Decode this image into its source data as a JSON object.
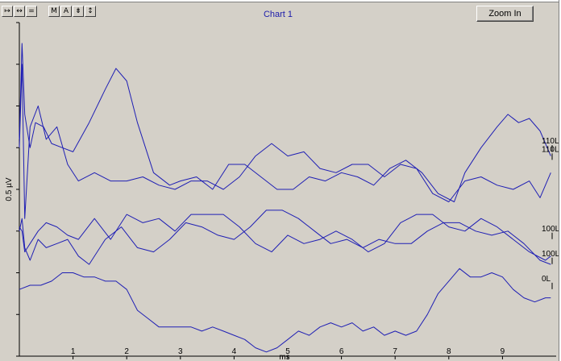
{
  "toolbar": {
    "group1": [
      {
        "label": "↦",
        "name": "fit-width-button"
      },
      {
        "label": "↔",
        "name": "expand-horizontal-button"
      },
      {
        "label": "=",
        "name": "reset-button"
      }
    ],
    "group2": [
      {
        "label": "M",
        "name": "marker-button"
      },
      {
        "label": "A",
        "name": "auto-scale-button"
      },
      {
        "label": "⇟",
        "name": "compress-vertical-button"
      },
      {
        "label": "↕",
        "name": "expand-vertical-button"
      }
    ]
  },
  "chart_title": "Chart 1",
  "zoom_label": "Zoom In",
  "colors": {
    "trace": "#1f1fb4",
    "background": "#d4d0c8"
  },
  "chart_data": {
    "type": "line",
    "xlabel": "ms",
    "ylabel": "0.5 µV",
    "xlim": [
      0,
      10
    ],
    "ylim": [
      -4,
      4
    ],
    "x_ticks": [
      1,
      2,
      3,
      4,
      5,
      6,
      7,
      8,
      9
    ],
    "series": [
      {
        "name": "110L",
        "x": [
          0,
          0.05,
          0.1,
          0.2,
          0.3,
          0.45,
          0.6,
          0.8,
          1.0,
          1.3,
          1.6,
          1.8,
          2.0,
          2.2,
          2.5,
          2.8,
          3.0,
          3.3,
          3.6,
          3.9,
          4.2,
          4.5,
          4.8,
          5.1,
          5.4,
          5.7,
          6.0,
          6.3,
          6.6,
          6.9,
          7.2,
          7.5,
          7.8,
          8.1,
          8.3,
          8.6,
          8.9,
          9.1,
          9.3,
          9.5,
          9.7,
          9.9
        ],
        "y": [
          1.2,
          3.5,
          1.8,
          1.0,
          1.6,
          1.5,
          1.1,
          1.0,
          0.9,
          1.6,
          2.4,
          2.9,
          2.6,
          1.6,
          0.4,
          0.1,
          0.2,
          0.3,
          0.0,
          0.6,
          0.6,
          0.3,
          0.0,
          0.0,
          0.3,
          0.2,
          0.4,
          0.3,
          0.1,
          0.5,
          0.7,
          0.4,
          -0.1,
          -0.3,
          0.4,
          1.0,
          1.5,
          1.8,
          1.6,
          1.7,
          1.4,
          0.8
        ]
      },
      {
        "name": "110L",
        "x": [
          0,
          0.05,
          0.1,
          0.2,
          0.35,
          0.5,
          0.7,
          0.9,
          1.1,
          1.4,
          1.7,
          2.0,
          2.3,
          2.6,
          2.9,
          3.2,
          3.5,
          3.8,
          4.1,
          4.4,
          4.7,
          5.0,
          5.3,
          5.6,
          5.9,
          6.2,
          6.5,
          6.8,
          7.1,
          7.4,
          7.7,
          8.0,
          8.3,
          8.6,
          8.9,
          9.2,
          9.5,
          9.7,
          9.9
        ],
        "y": [
          1.0,
          3.0,
          -0.7,
          1.5,
          2.0,
          1.2,
          1.5,
          0.6,
          0.2,
          0.4,
          0.2,
          0.2,
          0.3,
          0.1,
          0.0,
          0.2,
          0.2,
          0.0,
          0.3,
          0.8,
          1.1,
          0.8,
          0.9,
          0.5,
          0.4,
          0.6,
          0.6,
          0.3,
          0.6,
          0.5,
          -0.1,
          -0.3,
          0.2,
          0.3,
          0.1,
          0.0,
          0.2,
          -0.2,
          0.4
        ]
      },
      {
        "name": "100L",
        "x": [
          0,
          0.05,
          0.1,
          0.2,
          0.35,
          0.5,
          0.7,
          0.9,
          1.1,
          1.3,
          1.6,
          1.9,
          2.2,
          2.5,
          2.8,
          3.1,
          3.4,
          3.7,
          4.0,
          4.3,
          4.6,
          4.9,
          5.2,
          5.5,
          5.8,
          6.1,
          6.4,
          6.7,
          7.0,
          7.3,
          7.6,
          7.9,
          8.2,
          8.5,
          8.8,
          9.1,
          9.4,
          9.7,
          9.9
        ],
        "y": [
          -1.0,
          -0.7,
          -1.4,
          -1.7,
          -1.2,
          -1.4,
          -1.3,
          -1.2,
          -1.6,
          -1.8,
          -1.2,
          -0.9,
          -1.4,
          -1.5,
          -1.2,
          -0.8,
          -0.9,
          -1.1,
          -1.2,
          -0.9,
          -0.5,
          -0.5,
          -0.7,
          -1.0,
          -1.3,
          -1.2,
          -1.4,
          -1.2,
          -1.3,
          -1.3,
          -1.0,
          -0.8,
          -0.8,
          -1.0,
          -1.1,
          -1.0,
          -1.3,
          -1.7,
          -1.8
        ]
      },
      {
        "name": "100L",
        "x": [
          0,
          0.05,
          0.1,
          0.2,
          0.35,
          0.5,
          0.7,
          0.9,
          1.1,
          1.4,
          1.7,
          2.0,
          2.3,
          2.6,
          2.9,
          3.2,
          3.5,
          3.8,
          4.1,
          4.4,
          4.7,
          5.0,
          5.3,
          5.6,
          5.9,
          6.2,
          6.5,
          6.8,
          7.1,
          7.4,
          7.7,
          8.0,
          8.3,
          8.6,
          8.9,
          9.2,
          9.5,
          9.8,
          9.9
        ],
        "y": [
          -0.9,
          -1.0,
          -1.5,
          -1.3,
          -1.0,
          -0.8,
          -0.9,
          -1.1,
          -1.2,
          -0.7,
          -1.2,
          -0.6,
          -0.8,
          -0.7,
          -1.0,
          -0.6,
          -0.6,
          -0.6,
          -0.9,
          -1.3,
          -1.5,
          -1.1,
          -1.3,
          -1.2,
          -1.0,
          -1.2,
          -1.5,
          -1.3,
          -0.8,
          -0.6,
          -0.6,
          -0.9,
          -1.0,
          -0.7,
          -0.9,
          -1.2,
          -1.5,
          -1.7,
          -1.6
        ]
      },
      {
        "name": "0L",
        "x": [
          0,
          0.2,
          0.4,
          0.6,
          0.8,
          1.0,
          1.2,
          1.4,
          1.6,
          1.8,
          2.0,
          2.2,
          2.4,
          2.6,
          2.8,
          3.0,
          3.2,
          3.4,
          3.6,
          3.8,
          4.0,
          4.2,
          4.4,
          4.6,
          4.8,
          5.0,
          5.2,
          5.4,
          5.6,
          5.8,
          6.0,
          6.2,
          6.4,
          6.6,
          6.8,
          7.0,
          7.2,
          7.4,
          7.6,
          7.8,
          8.0,
          8.2,
          8.4,
          8.6,
          8.8,
          9.0,
          9.2,
          9.4,
          9.6,
          9.8,
          9.9
        ],
        "y": [
          -2.4,
          -2.3,
          -2.3,
          -2.2,
          -2.0,
          -2.0,
          -2.1,
          -2.1,
          -2.2,
          -2.2,
          -2.4,
          -2.9,
          -3.1,
          -3.3,
          -3.3,
          -3.3,
          -3.3,
          -3.4,
          -3.3,
          -3.4,
          -3.5,
          -3.6,
          -3.8,
          -3.9,
          -3.8,
          -3.6,
          -3.4,
          -3.5,
          -3.3,
          -3.2,
          -3.3,
          -3.2,
          -3.4,
          -3.3,
          -3.5,
          -3.4,
          -3.5,
          -3.4,
          -3.0,
          -2.5,
          -2.2,
          -1.9,
          -2.1,
          -2.1,
          -2.0,
          -2.1,
          -2.4,
          -2.6,
          -2.7,
          -2.6,
          -2.6
        ]
      }
    ],
    "trace_labels": [
      {
        "text": "110L",
        "y": 1.1
      },
      {
        "text": "110L",
        "y": 0.9
      },
      {
        "text": "100L",
        "y": -1.0
      },
      {
        "text": "100L",
        "y": -1.6
      },
      {
        "text": "0L",
        "y": -2.2
      }
    ]
  }
}
